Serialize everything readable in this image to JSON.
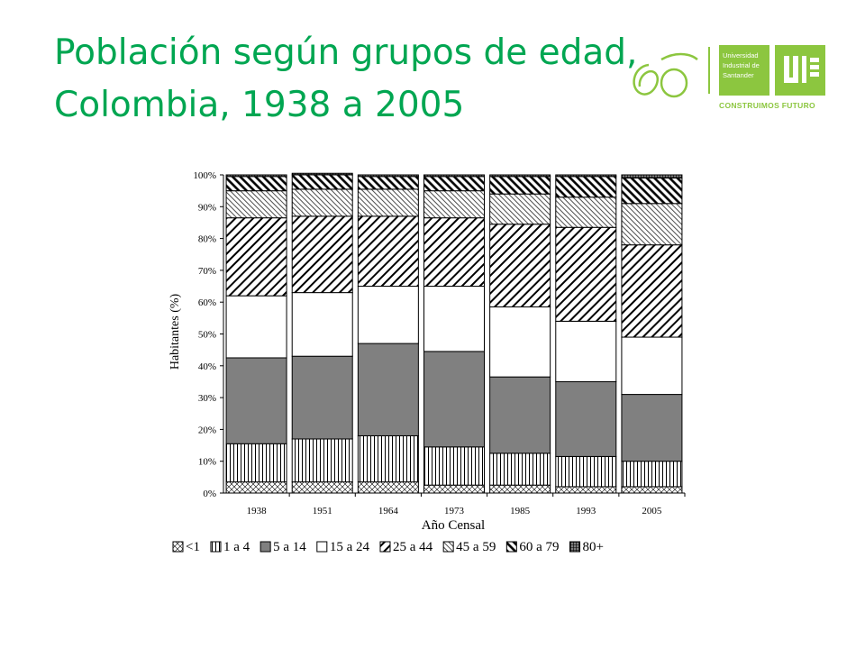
{
  "slide": {
    "title_line1": "Población según grupos de edad,",
    "title_line2": "Colombia, 1938 a 2005"
  },
  "logo": {
    "anniversary_text": "60 Años",
    "university_name": "Universidad\nIndustrial de\nSantander",
    "initials": "UIS",
    "tagline": "CONSTRUIMOS FUTURO"
  },
  "colors": {
    "title": "#00a651",
    "brand": "#8cc63f",
    "bar_stroke": "#000000",
    "fill_5_a_14": "#808080"
  },
  "chart_data": {
    "type": "bar",
    "stacked": true,
    "percent": true,
    "title": "",
    "xlabel": "Año Censal",
    "ylabel": "Habitantes (%)",
    "ylim": [
      0,
      100
    ],
    "yticks": [
      "0%",
      "10%",
      "20%",
      "30%",
      "40%",
      "50%",
      "60%",
      "70%",
      "80%",
      "90%",
      "100%"
    ],
    "categories": [
      "1938",
      "1951",
      "1964",
      "1973",
      "1985",
      "1993",
      "2005"
    ],
    "legend_position": "bottom",
    "series": [
      {
        "name": "<1",
        "pattern": "crosshatch",
        "values": [
          3.5,
          3.5,
          3.5,
          2.5,
          2.5,
          2.0,
          2.0
        ]
      },
      {
        "name": "1 a 4",
        "pattern": "vertical",
        "values": [
          12.0,
          13.5,
          14.5,
          12.0,
          10.0,
          9.5,
          8.0
        ]
      },
      {
        "name": "5 a 14",
        "pattern": "solid-gray",
        "values": [
          27.0,
          26.0,
          29.0,
          30.0,
          24.0,
          23.5,
          21.0
        ]
      },
      {
        "name": "15 a 24",
        "pattern": "white",
        "values": [
          19.5,
          20.0,
          18.0,
          20.5,
          22.0,
          19.0,
          18.0
        ]
      },
      {
        "name": "25 a 44",
        "pattern": "diag-fwd",
        "values": [
          24.5,
          24.0,
          22.0,
          21.5,
          26.0,
          29.5,
          29.0
        ]
      },
      {
        "name": "45 a 59",
        "pattern": "diag-fine",
        "values": [
          8.5,
          8.5,
          8.5,
          8.5,
          9.5,
          9.5,
          13.0
        ]
      },
      {
        "name": "60 a 79",
        "pattern": "diag-back",
        "values": [
          4.5,
          4.5,
          4.0,
          4.5,
          5.5,
          6.5,
          8.0
        ]
      },
      {
        "name": "80+",
        "pattern": "grid",
        "values": [
          0.5,
          0.5,
          0.5,
          0.5,
          0.5,
          0.5,
          1.0
        ]
      }
    ]
  }
}
